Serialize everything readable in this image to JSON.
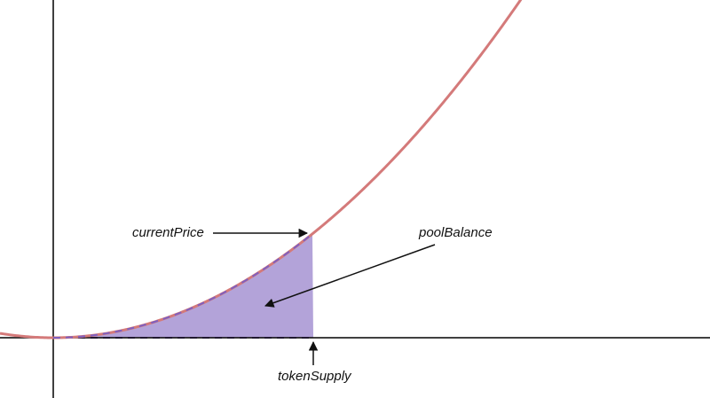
{
  "diagram": {
    "curve": "quadratic",
    "labels": {
      "current_price": "currentPrice",
      "pool_balance": "poolBalance",
      "token_supply": "tokenSupply"
    },
    "colors": {
      "axes": "#000000",
      "curve": "#d47a7a",
      "area_fill": "#b3a3d9",
      "area_edge": "#7f5fbf",
      "arrows": "#111111",
      "text": "#111111"
    }
  }
}
